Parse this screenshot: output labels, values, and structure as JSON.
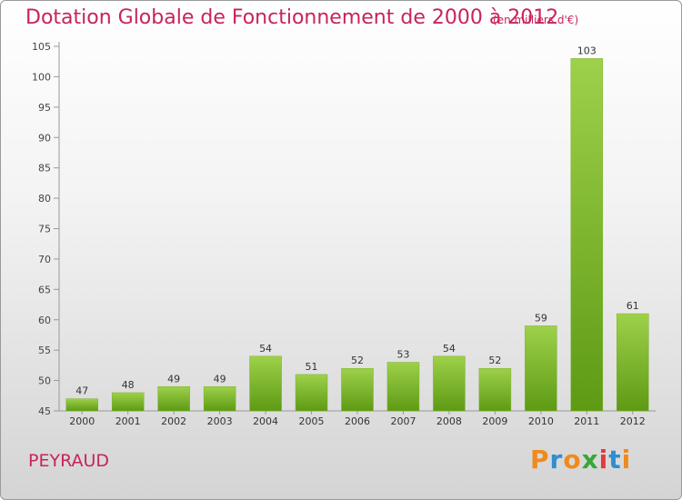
{
  "page": {
    "title": "Dotation Globale de Fonctionnement de 2000 à 2012",
    "unit_note": "(en milliers d'€)",
    "location": "PEYRAUD",
    "brand": "Proxiti"
  },
  "colors": {
    "title": "#c8245a",
    "bar_light": "#9ed14a",
    "bar_dark": "#5e9a14",
    "brand_letters": [
      "#f08a1c",
      "#2d8fd0",
      "#f08a1c",
      "#3aa63a",
      "#e23b3b",
      "#2d8fd0",
      "#f08a1c"
    ]
  },
  "chart_data": {
    "type": "bar",
    "title": "Dotation Globale de Fonctionnement de 2000 à 2012",
    "subtitle": "(en milliers d'€)",
    "categories": [
      "2000",
      "2001",
      "2002",
      "2003",
      "2004",
      "2005",
      "2006",
      "2007",
      "2008",
      "2009",
      "2010",
      "2011",
      "2012"
    ],
    "values": [
      47,
      48,
      49,
      49,
      54,
      51,
      52,
      53,
      54,
      52,
      59,
      103,
      61
    ],
    "ylim": [
      45,
      105
    ],
    "yticks": [
      45,
      50,
      55,
      60,
      65,
      70,
      75,
      80,
      85,
      90,
      95,
      100,
      105
    ],
    "grid": false,
    "data_labels": true
  }
}
